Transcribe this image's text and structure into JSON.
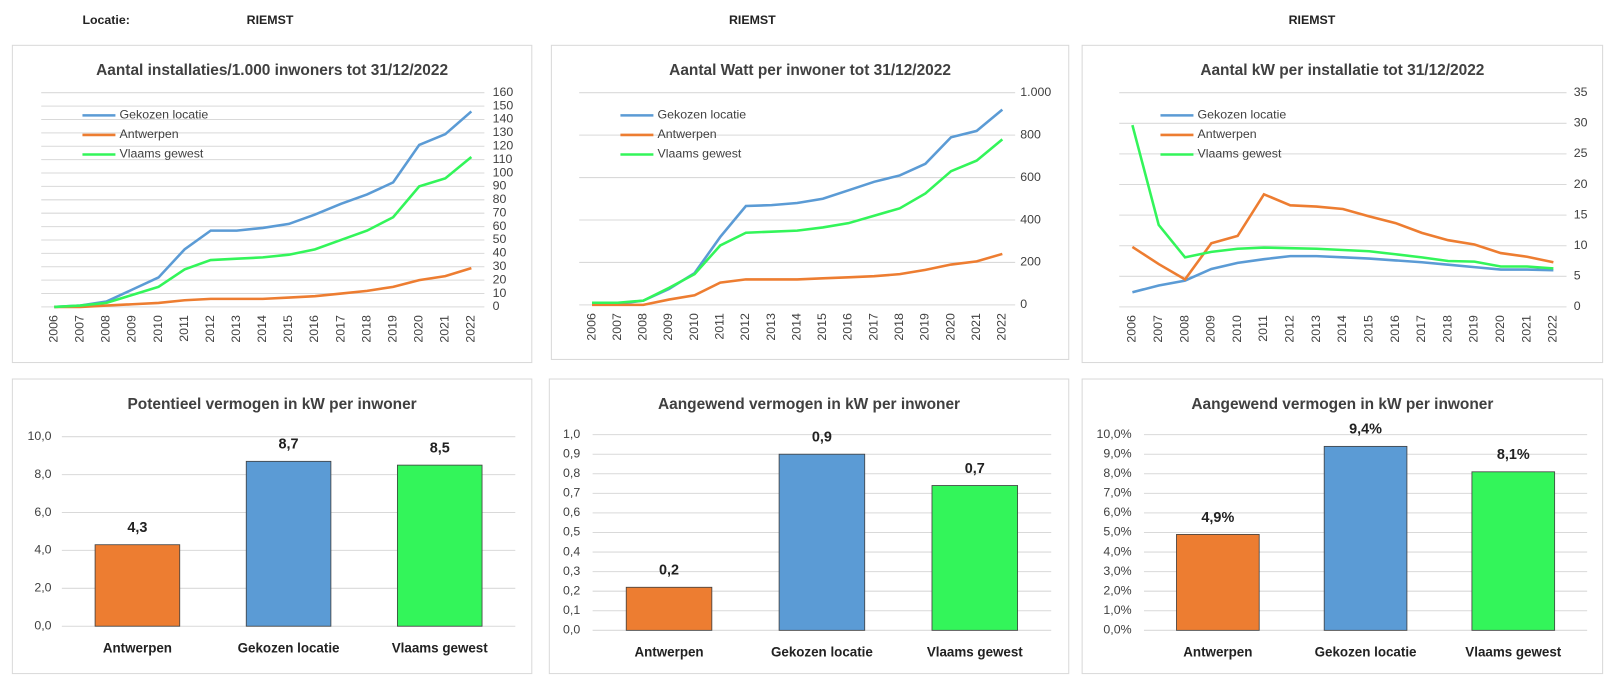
{
  "header": {
    "label": "Locatie:",
    "titles": [
      "RIEMST",
      "RIEMST",
      "RIEMST"
    ]
  },
  "chart_data": [
    {
      "type": "line",
      "title": "Aantal installaties/1.000  inwoners tot 31/12/2022",
      "categories": [
        "2006",
        "2007",
        "2008",
        "2009",
        "2010",
        "2011",
        "2012",
        "2013",
        "2014",
        "2015",
        "2016",
        "2017",
        "2018",
        "2019",
        "2020",
        "2021",
        "2022"
      ],
      "series": [
        {
          "name": "Gekozen locatie",
          "color": "#5b9bd5",
          "values": [
            0,
            1,
            4,
            13,
            22,
            43,
            57,
            57,
            59,
            62,
            69,
            77,
            84,
            93,
            121,
            129,
            146
          ]
        },
        {
          "name": "Antwerpen",
          "color": "#ed7d31",
          "values": [
            0,
            0,
            1,
            2,
            3,
            5,
            6,
            6,
            6,
            7,
            8,
            10,
            12,
            15,
            20,
            23,
            29
          ]
        },
        {
          "name": "Vlaams gewest",
          "color": "#33f55a",
          "values": [
            0,
            1,
            3,
            9,
            15,
            28,
            35,
            36,
            37,
            39,
            43,
            50,
            57,
            67,
            90,
            96,
            112
          ]
        }
      ],
      "ylim": [
        0,
        160
      ],
      "yticks": [
        0,
        10,
        20,
        30,
        40,
        50,
        60,
        70,
        80,
        90,
        100,
        110,
        120,
        130,
        140,
        150,
        160
      ],
      "grid": true,
      "legend": "upper left"
    },
    {
      "type": "line",
      "title": "Aantal Watt per inwoner tot 31/12/2022",
      "categories": [
        "2006",
        "2007",
        "2008",
        "2009",
        "2010",
        "2011",
        "2012",
        "2013",
        "2014",
        "2015",
        "2016",
        "2017",
        "2018",
        "2019",
        "2020",
        "2021",
        "2022"
      ],
      "series": [
        {
          "name": "Gekozen locatie",
          "color": "#5b9bd5",
          "values": [
            5,
            5,
            20,
            75,
            150,
            320,
            466,
            470,
            480,
            500,
            540,
            580,
            610,
            665,
            790,
            820,
            920
          ]
        },
        {
          "name": "Antwerpen",
          "color": "#ed7d31",
          "values": [
            0,
            0,
            0,
            25,
            45,
            105,
            120,
            120,
            120,
            125,
            130,
            135,
            145,
            165,
            190,
            205,
            240
          ]
        },
        {
          "name": "Vlaams gewest",
          "color": "#33f55a",
          "values": [
            10,
            10,
            20,
            80,
            145,
            280,
            340,
            345,
            350,
            365,
            385,
            420,
            455,
            525,
            630,
            680,
            780
          ]
        }
      ],
      "ylim": [
        0,
        1000
      ],
      "yticks": [
        0,
        200,
        400,
        600,
        800,
        {
          "value": 1000,
          "label": "1.000"
        }
      ],
      "grid": true,
      "legend": "upper left"
    },
    {
      "type": "line",
      "title": "Aantal kW per installatie  tot 31/12/2022",
      "categories": [
        "2006",
        "2007",
        "2008",
        "2009",
        "2010",
        "2011",
        "2012",
        "2013",
        "2014",
        "2015",
        "2016",
        "2017",
        "2018",
        "2019",
        "2020",
        "2021",
        "2022"
      ],
      "series": [
        {
          "name": "Gekozen locatie",
          "color": "#5b9bd5",
          "values": [
            2.4,
            3.5,
            4.3,
            6.2,
            7.2,
            7.8,
            8.3,
            8.3,
            8.1,
            7.9,
            7.6,
            7.3,
            6.9,
            6.5,
            6.1,
            6.1,
            6.0
          ]
        },
        {
          "name": "Antwerpen",
          "color": "#ed7d31",
          "values": [
            9.8,
            7.0,
            4.5,
            10.4,
            11.6,
            18.4,
            16.6,
            16.4,
            16.0,
            14.8,
            13.7,
            12.1,
            10.9,
            10.2,
            8.8,
            8.2,
            7.3
          ]
        },
        {
          "name": "Vlaams gewest",
          "color": "#33f55a",
          "values": [
            29.7,
            13.4,
            8.1,
            9.0,
            9.5,
            9.7,
            9.6,
            9.5,
            9.3,
            9.1,
            8.6,
            8.1,
            7.5,
            7.4,
            6.6,
            6.6,
            6.3
          ]
        }
      ],
      "ylim": [
        0,
        35
      ],
      "yticks": [
        0,
        5,
        10,
        15,
        20,
        25,
        30,
        35
      ],
      "grid": true,
      "legend": "upper left"
    },
    {
      "type": "bar",
      "title": "Potentieel vermogen in kW per inwoner",
      "categories": [
        "Antwerpen",
        "Gekozen locatie",
        "Vlaams gewest"
      ],
      "values": [
        4.3,
        8.7,
        8.5
      ],
      "value_labels": [
        "4,3",
        "8,7",
        "8,5"
      ],
      "colors": [
        "#ed7d31",
        "#5b9bd5",
        "#33f55a"
      ],
      "ylim": [
        0,
        10
      ],
      "yticks": [
        {
          "value": 0,
          "label": "0,0"
        },
        {
          "value": 2,
          "label": "2,0"
        },
        {
          "value": 4,
          "label": "4,0"
        },
        {
          "value": 6,
          "label": "6,0"
        },
        {
          "value": 8,
          "label": "8,0"
        },
        {
          "value": 10,
          "label": "10,0"
        }
      ],
      "grid": true
    },
    {
      "type": "bar",
      "title": "Aangewend vermogen in kW per inwoner",
      "categories": [
        "Antwerpen",
        "Gekozen locatie",
        "Vlaams gewest"
      ],
      "values": [
        0.22,
        0.9,
        0.74
      ],
      "value_labels": [
        "0,2",
        "0,9",
        "0,7"
      ],
      "colors": [
        "#ed7d31",
        "#5b9bd5",
        "#33f55a"
      ],
      "ylim": [
        0,
        1
      ],
      "yticks": [
        {
          "value": 0,
          "label": "0,0"
        },
        {
          "value": 0.1,
          "label": "0,1"
        },
        {
          "value": 0.2,
          "label": "0,2"
        },
        {
          "value": 0.3,
          "label": "0,3"
        },
        {
          "value": 0.4,
          "label": "0,4"
        },
        {
          "value": 0.5,
          "label": "0,5"
        },
        {
          "value": 0.6,
          "label": "0,6"
        },
        {
          "value": 0.7,
          "label": "0,7"
        },
        {
          "value": 0.8,
          "label": "0,8"
        },
        {
          "value": 0.9,
          "label": "0,9"
        },
        {
          "value": 1,
          "label": "1,0"
        }
      ],
      "grid": true
    },
    {
      "type": "bar",
      "title": "Aangewend vermogen in kW per inwoner",
      "categories": [
        "Antwerpen",
        "Gekozen locatie",
        "Vlaams gewest"
      ],
      "values": [
        4.9,
        9.4,
        8.1
      ],
      "value_labels": [
        "4,9%",
        "9,4%",
        "8,1%"
      ],
      "colors": [
        "#ed7d31",
        "#5b9bd5",
        "#33f55a"
      ],
      "ylim": [
        0,
        10
      ],
      "yticks": [
        {
          "value": 0,
          "label": "0,0%"
        },
        {
          "value": 1,
          "label": "1,0%"
        },
        {
          "value": 2,
          "label": "2,0%"
        },
        {
          "value": 3,
          "label": "3,0%"
        },
        {
          "value": 4,
          "label": "4,0%"
        },
        {
          "value": 5,
          "label": "5,0%"
        },
        {
          "value": 6,
          "label": "6,0%"
        },
        {
          "value": 7,
          "label": "7,0%"
        },
        {
          "value": 8,
          "label": "8,0%"
        },
        {
          "value": 9,
          "label": "9,0%"
        },
        {
          "value": 10,
          "label": "10,0%"
        }
      ],
      "grid": true
    }
  ]
}
